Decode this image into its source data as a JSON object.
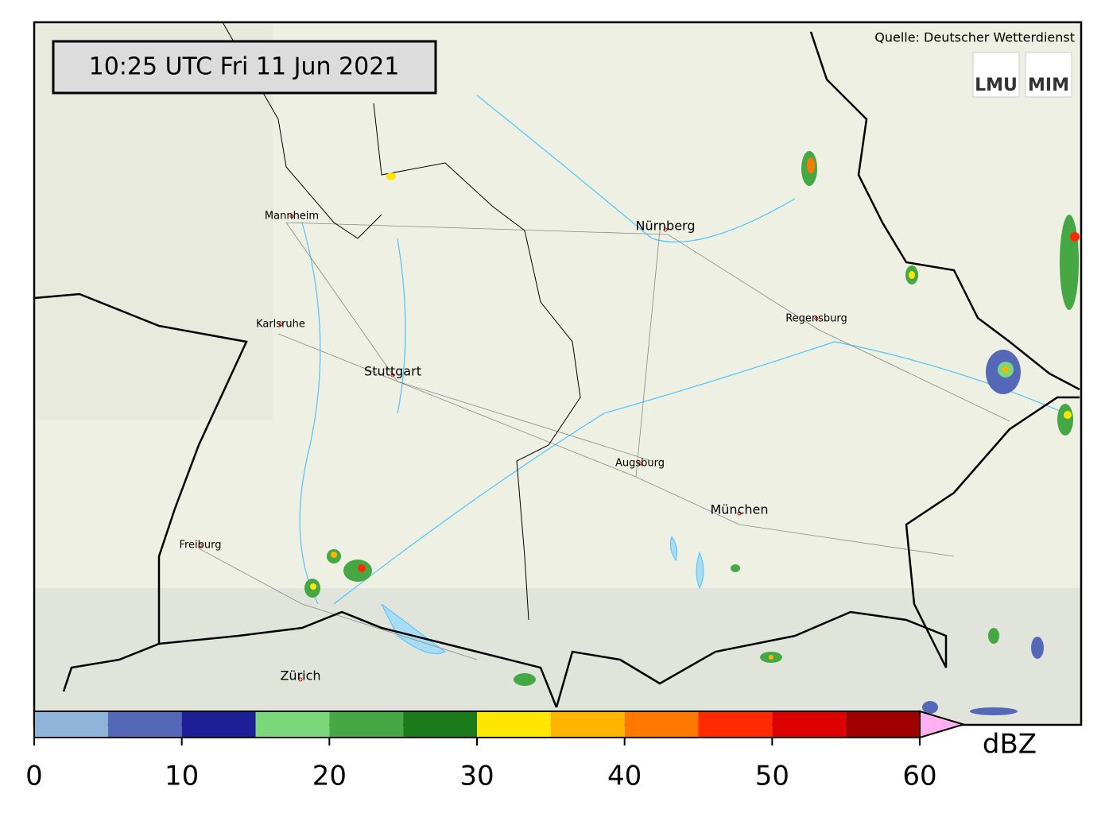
{
  "header": {
    "timestamp": "10:25 UTC  Fri 11 Jun 2021",
    "source": "Quelle: Deutscher Wetterdienst",
    "logos": [
      "LMU",
      "MIM"
    ]
  },
  "cities": [
    {
      "label": "Mannheim"
    },
    {
      "label": "Nürnberg"
    },
    {
      "label": "Karlsruhe"
    },
    {
      "label": "Regensburg"
    },
    {
      "label": "Stuttgart"
    },
    {
      "label": "Augsburg"
    },
    {
      "label": "München"
    },
    {
      "label": "Freiburg"
    },
    {
      "label": "Zürich"
    }
  ],
  "colorbar": {
    "unit": "dBZ",
    "range": [
      0,
      60
    ],
    "bounds": [
      0,
      5,
      10,
      15,
      20,
      25,
      30,
      35,
      40,
      45,
      50,
      55,
      60
    ],
    "colors": [
      "#8fb3d9",
      "#5568b8",
      "#1c1f96",
      "#7ad77a",
      "#45a845",
      "#1a7a1a",
      "#ffe600",
      "#ffb400",
      "#ff7800",
      "#ff2a00",
      "#dc0000",
      "#a00000"
    ],
    "extend_color": "#ffb0f0",
    "ticks": [
      0,
      10,
      20,
      30,
      40,
      50,
      60
    ]
  }
}
